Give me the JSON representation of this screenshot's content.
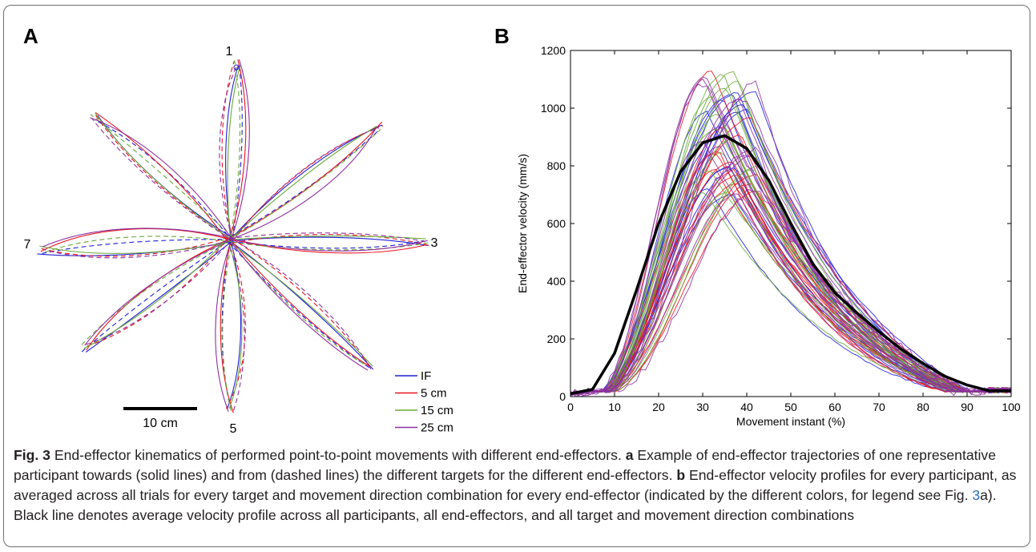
{
  "panel_a": {
    "label": "A",
    "target_labels": [
      {
        "text": "1",
        "target": 1
      },
      {
        "text": "3",
        "target": 3
      },
      {
        "text": "5",
        "target": 5
      },
      {
        "text": "7",
        "target": 7
      }
    ],
    "scale_bar_label": "10 cm",
    "legend": [
      {
        "label": "IF",
        "color": "#1f1fd6"
      },
      {
        "label": "5 cm",
        "color": "#e8141e"
      },
      {
        "label": "15 cm",
        "color": "#6aa93a"
      },
      {
        "label": "25 cm",
        "color": "#8e2fa0"
      }
    ]
  },
  "panel_b": {
    "label": "B"
  },
  "chart_data": {
    "type": "line",
    "xlabel": "Movement instant (%)",
    "ylabel": "End-effector velocity (mm/s)",
    "xlim": [
      0,
      100
    ],
    "ylim": [
      0,
      1200
    ],
    "xticks": [
      "0",
      "10",
      "20",
      "30",
      "40",
      "50",
      "60",
      "70",
      "80",
      "90",
      "100"
    ],
    "yticks": [
      "0",
      "200",
      "400",
      "600",
      "800",
      "1000",
      "1200"
    ],
    "grid": false,
    "series_colors": {
      "IF": "#1f1fd6",
      "5 cm": "#e8141e",
      "15 cm": "#6aa93a",
      "25 cm": "#8e2fa0",
      "average": "#000000"
    },
    "average_profile": {
      "x": [
        0,
        5,
        10,
        15,
        20,
        25,
        30,
        35,
        40,
        45,
        50,
        55,
        60,
        65,
        70,
        75,
        80,
        85,
        90,
        95,
        100
      ],
      "y": [
        10,
        25,
        150,
        370,
        600,
        780,
        880,
        905,
        860,
        750,
        600,
        460,
        360,
        290,
        225,
        165,
        115,
        70,
        40,
        20,
        20
      ]
    },
    "individual_profiles": {
      "peak_range": [
        700,
        1140
      ],
      "peak_time_range": [
        30,
        43
      ],
      "count_per_effector": 14
    }
  },
  "caption": {
    "fig_label": "Fig. 3",
    "intro": " End-effector kinematics of performed point-to-point movements with different end-effectors. ",
    "part_a_label": "a",
    "part_a_text_1": " Example of end-effector trajectories of one representative participant towards (solid lines) and from (dashed lines) the different targets for the different end-effectors. ",
    "part_b_label": "b",
    "part_b_text_1": " End-effector velocity profiles for every participant, as averaged across all trials for every target and movement direction combination for every end-effector (indicated by the different colors, for legend see Fig. ",
    "fig_link": "3",
    "part_b_text_2": "a). Black line denotes average velocity profile across all participants, all end-effectors, and all target and movement direction combinations"
  }
}
